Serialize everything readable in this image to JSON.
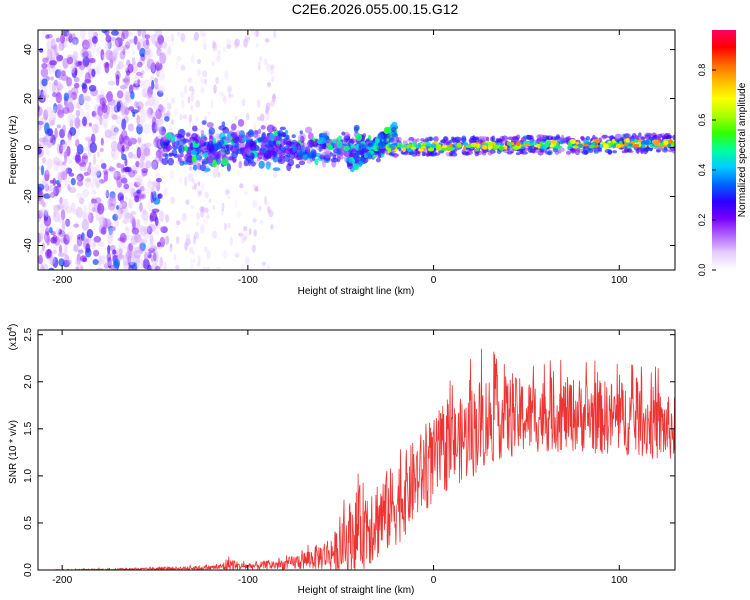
{
  "title": "C2E6.2026.055.00.15.G12",
  "chart_data": [
    {
      "type": "heatmap",
      "xlabel": "Height of straight line (km)",
      "ylabel": "Frequency (Hz)",
      "xlim": [
        -213,
        130
      ],
      "ylim": [
        -50,
        48
      ],
      "xticks": [
        -200,
        -100,
        0,
        100
      ],
      "yticks": [
        -40,
        -20,
        0,
        20,
        40
      ],
      "colorbar": {
        "label": "Normalized spectral amplitude",
        "range": [
          0.0,
          0.96
        ],
        "ticks": [
          0.0,
          0.2,
          0.4,
          0.6,
          0.8
        ],
        "colors": [
          "#ffffff",
          "#e6ccff",
          "#b266ff",
          "#7a00ff",
          "#2a00ff",
          "#0066ff",
          "#00ccff",
          "#00ff99",
          "#33ff00",
          "#aaff00",
          "#ffff00",
          "#ffbb00",
          "#ff6600",
          "#ff0000",
          "#ff0066"
        ]
      },
      "features": {
        "noise_region_x": [
          -213,
          -145
        ],
        "cluster_region_x": [
          -145,
          -25
        ],
        "line_region_x": [
          -25,
          130
        ],
        "line_frequency_hz": [
          0,
          2
        ],
        "line_peak_amplitude": 0.85
      }
    },
    {
      "type": "line",
      "xlabel": "Height of straight line (km)",
      "ylabel": "SNR (10 * v/v)",
      "y_scale_label": "(x10",
      "y_scale_exp": "4",
      "xlim": [
        -213,
        130
      ],
      "ylim": [
        0,
        2.55
      ],
      "xticks": [
        -200,
        -100,
        0,
        100
      ],
      "yticks": [
        0.0,
        0.5,
        1.0,
        1.5,
        2.0,
        2.5
      ],
      "color": "#ee3333",
      "x": [
        -213,
        -190,
        -160,
        -130,
        -115,
        -110,
        -105,
        -100,
        -90,
        -80,
        -70,
        -60,
        -50,
        -45,
        -40,
        -35,
        -30,
        -25,
        -20,
        -15,
        -10,
        -5,
        0,
        5,
        10,
        15,
        20,
        25,
        30,
        35,
        40,
        50,
        60,
        70,
        80,
        90,
        100,
        110,
        120,
        125,
        130
      ],
      "series": [
        {
          "mean": [
            0.0,
            0.0,
            0.01,
            0.02,
            0.03,
            0.06,
            0.04,
            0.04,
            0.05,
            0.06,
            0.1,
            0.15,
            0.22,
            0.35,
            0.45,
            0.52,
            0.55,
            0.62,
            0.7,
            0.82,
            0.95,
            1.05,
            1.15,
            1.25,
            1.32,
            1.38,
            1.45,
            1.55,
            1.6,
            1.62,
            1.62,
            1.63,
            1.65,
            1.65,
            1.65,
            1.62,
            1.62,
            1.6,
            1.55,
            1.5,
            1.5
          ],
          "spread": [
            0.0,
            0.01,
            0.01,
            0.02,
            0.03,
            0.1,
            0.04,
            0.04,
            0.05,
            0.06,
            0.1,
            0.15,
            0.25,
            0.4,
            0.45,
            0.5,
            0.45,
            0.45,
            0.45,
            0.45,
            0.45,
            0.45,
            0.45,
            0.45,
            0.45,
            0.45,
            0.5,
            0.5,
            0.5,
            0.45,
            0.45,
            0.4,
            0.4,
            0.4,
            0.4,
            0.4,
            0.4,
            0.4,
            0.4,
            0.35,
            0.35
          ]
        }
      ]
    }
  ]
}
